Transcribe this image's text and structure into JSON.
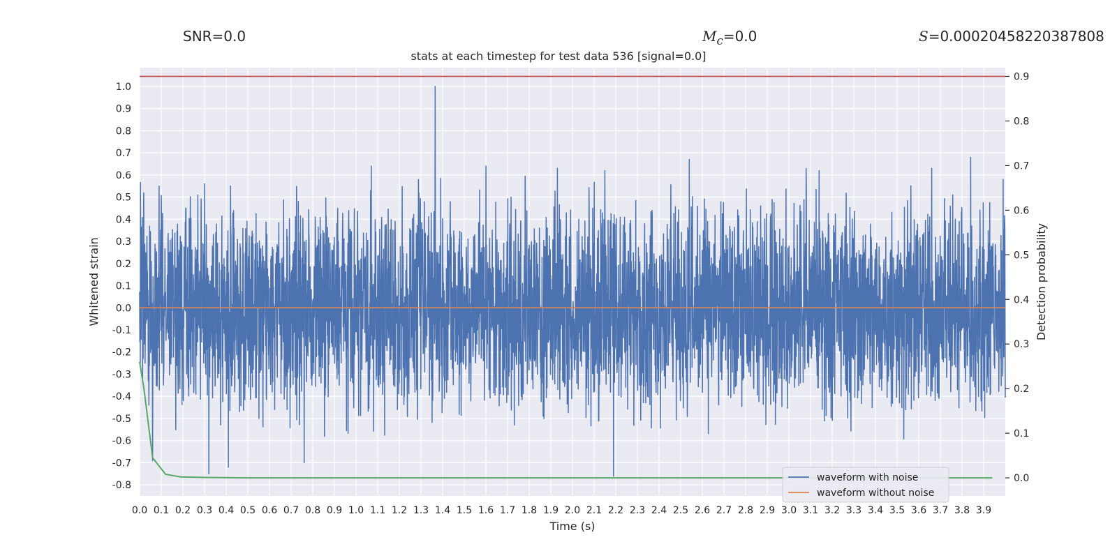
{
  "header": {
    "snr_label": "SNR=0.0",
    "mc_symbol": "M",
    "mc_subscript": "c",
    "mc_value": "=0.0",
    "s_symbol": "S",
    "s_value": "=0.00020458220387808"
  },
  "colors": {
    "background": "#eaeaf2",
    "grid": "#ffffff",
    "noisy_waveform": "#4c72b0",
    "clean_waveform": "#dd8452",
    "detection_probability": "#55a868",
    "threshold": "#c44e52"
  },
  "chart_data": {
    "type": "line",
    "title": "stats at each timestep for test data 536 [signal=0.0]",
    "xlabel": "Time (s)",
    "ylabel": "Whitened strain",
    "y2label": "Detection probability",
    "xlim": [
      0.0,
      4.0
    ],
    "ylim": [
      -0.85,
      1.085
    ],
    "y2lim": [
      -0.0405,
      0.9195
    ],
    "xticks": [
      "0.0",
      "0.1",
      "0.2",
      "0.3",
      "0.4",
      "0.5",
      "0.6",
      "0.7",
      "0.8",
      "0.9",
      "1.0",
      "1.1",
      "1.2",
      "1.3",
      "1.4",
      "1.5",
      "1.6",
      "1.7",
      "1.8",
      "1.9",
      "2.0",
      "2.1",
      "2.2",
      "2.3",
      "2.4",
      "2.5",
      "2.6",
      "2.7",
      "2.8",
      "2.9",
      "3.0",
      "3.1",
      "3.2",
      "3.3",
      "3.4",
      "3.5",
      "3.6",
      "3.7",
      "3.8",
      "3.9"
    ],
    "yticks": [
      "1.0",
      "0.9",
      "0.8",
      "0.7",
      "0.6",
      "0.5",
      "0.4",
      "0.3",
      "0.2",
      "0.1",
      "0.0",
      "-0.1",
      "-0.2",
      "-0.3",
      "-0.4",
      "-0.5",
      "-0.6",
      "-0.7",
      "-0.8"
    ],
    "y2ticks": [
      "0.9",
      "0.8",
      "0.7",
      "0.6",
      "0.5",
      "0.4",
      "0.3",
      "0.2",
      "0.1",
      "0.0"
    ],
    "grid": true,
    "legend_position": "bottom-right",
    "series": [
      {
        "name": "waveform with noise",
        "axis": "left",
        "style": "dense noise, typical amplitude +/-0.35",
        "extremes": [
          {
            "x": 1.365,
            "y": 1.0
          },
          {
            "x": 2.19,
            "y": -0.76
          },
          {
            "x": 3.08,
            "y": -0.76
          },
          {
            "x": 0.32,
            "y": -0.75
          },
          {
            "x": 0.41,
            "y": -0.72
          },
          {
            "x": 0.76,
            "y": -0.7
          },
          {
            "x": 0.06,
            "y": -0.69
          },
          {
            "x": 3.84,
            "y": 0.68
          },
          {
            "x": 2.54,
            "y": 0.67
          },
          {
            "x": 1.6,
            "y": 0.64
          },
          {
            "x": 1.07,
            "y": 0.64
          },
          {
            "x": 1.93,
            "y": 0.63
          },
          {
            "x": 3.08,
            "y": 0.63
          },
          {
            "x": 2.15,
            "y": 0.62
          },
          {
            "x": 3.14,
            "y": 0.62
          },
          {
            "x": 3.66,
            "y": 0.63
          },
          {
            "x": 0.09,
            "y": 0.55
          },
          {
            "x": 0.3,
            "y": 0.56
          },
          {
            "x": 0.42,
            "y": 0.55
          },
          {
            "x": 3.99,
            "y": 0.58
          }
        ]
      },
      {
        "name": "waveform without noise",
        "axis": "left",
        "x": [
          0.0,
          4.0
        ],
        "y": [
          0.0,
          0.0
        ]
      },
      {
        "name": "",
        "axis": "right",
        "x": [
          0.0,
          0.02,
          0.06,
          0.12,
          0.19,
          0.3,
          0.5,
          1.0,
          2.0,
          3.0,
          3.94
        ],
        "y": [
          0.26,
          0.2,
          0.045,
          0.008,
          0.002,
          0.001,
          0.0,
          0.0,
          0.0,
          0.0,
          0.0
        ]
      },
      {
        "name": "",
        "axis": "right",
        "x": [
          0.0,
          4.0
        ],
        "y": [
          0.9,
          0.9
        ]
      }
    ]
  }
}
